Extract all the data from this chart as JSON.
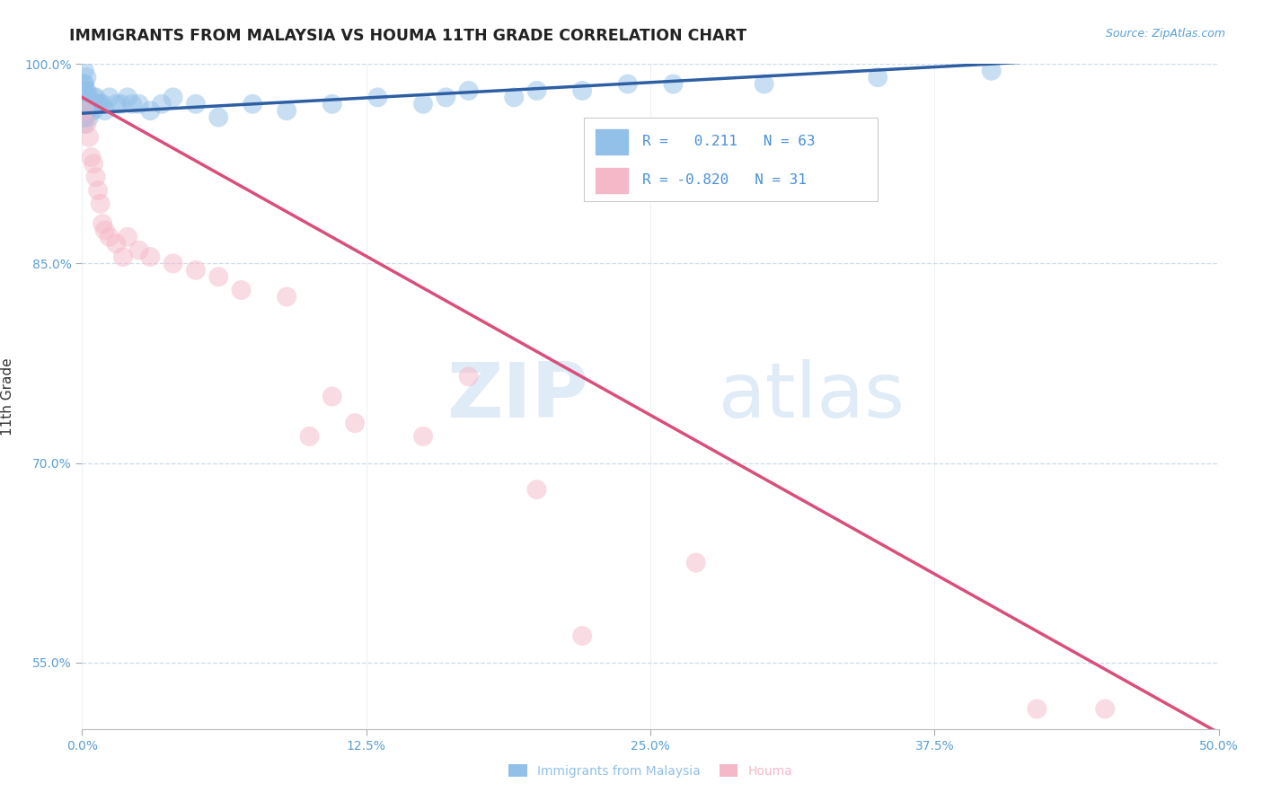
{
  "title": "IMMIGRANTS FROM MALAYSIA VS HOUMA 11TH GRADE CORRELATION CHART",
  "source_text": "Source: ZipAtlas.com",
  "ylabel": "11th Grade",
  "watermark_zip": "ZIP",
  "watermark_atlas": "atlas",
  "xlim": [
    0.0,
    0.5
  ],
  "ylim": [
    0.5,
    1.0
  ],
  "xtick_labels": [
    "0.0%",
    "",
    "",
    "",
    "12.5%",
    "",
    "",
    "",
    "25.0%",
    "",
    "",
    "",
    "37.5%",
    "",
    "",
    "",
    "50.0%"
  ],
  "xtick_vals": [
    0.0,
    0.03125,
    0.0625,
    0.09375,
    0.125,
    0.15625,
    0.1875,
    0.21875,
    0.25,
    0.28125,
    0.3125,
    0.34375,
    0.375,
    0.40625,
    0.4375,
    0.46875,
    0.5
  ],
  "xtick_major_labels": [
    "0.0%",
    "12.5%",
    "25.0%",
    "37.5%",
    "50.0%"
  ],
  "xtick_major_vals": [
    0.0,
    0.125,
    0.25,
    0.375,
    0.5
  ],
  "ytick_labels": [
    "100.0%",
    "85.0%",
    "70.0%",
    "55.0%"
  ],
  "ytick_vals": [
    1.0,
    0.85,
    0.7,
    0.55
  ],
  "blue_R": 0.211,
  "blue_N": 63,
  "pink_R": -0.82,
  "pink_N": 31,
  "blue_color": "#92C0E8",
  "pink_color": "#F5B8C8",
  "blue_line_color": "#2E5FA3",
  "pink_line_color": "#D94F7A",
  "legend_text_color": "#4A90D9",
  "background_color": "#FFFFFF",
  "grid_color": "#C8D8E8",
  "title_color": "#222222",
  "source_color": "#5A9FD4",
  "axis_label_color": "#333333",
  "tick_color": "#5A9FD4",
  "blue_scatter_x": [
    0.001,
    0.001,
    0.002,
    0.002,
    0.001,
    0.001,
    0.001,
    0.002,
    0.001,
    0.001,
    0.002,
    0.003,
    0.002,
    0.001,
    0.001,
    0.001,
    0.001,
    0.001,
    0.002,
    0.001,
    0.001,
    0.001,
    0.001,
    0.002,
    0.001,
    0.003,
    0.004,
    0.003,
    0.005,
    0.004,
    0.006,
    0.005,
    0.007,
    0.006,
    0.008,
    0.009,
    0.01,
    0.012,
    0.015,
    0.017,
    0.02,
    0.022,
    0.025,
    0.03,
    0.035,
    0.04,
    0.05,
    0.06,
    0.075,
    0.09,
    0.11,
    0.13,
    0.15,
    0.16,
    0.17,
    0.19,
    0.2,
    0.22,
    0.24,
    0.26,
    0.3,
    0.35,
    0.4
  ],
  "blue_scatter_y": [
    0.975,
    0.985,
    0.98,
    0.99,
    0.97,
    0.96,
    0.995,
    0.97,
    0.98,
    0.96,
    0.975,
    0.97,
    0.965,
    0.985,
    0.975,
    0.97,
    0.96,
    0.955,
    0.965,
    0.975,
    0.98,
    0.97,
    0.96,
    0.965,
    0.97,
    0.975,
    0.97,
    0.96,
    0.975,
    0.965,
    0.97,
    0.965,
    0.97,
    0.975,
    0.97,
    0.97,
    0.965,
    0.975,
    0.97,
    0.97,
    0.975,
    0.97,
    0.97,
    0.965,
    0.97,
    0.975,
    0.97,
    0.96,
    0.97,
    0.965,
    0.97,
    0.975,
    0.97,
    0.975,
    0.98,
    0.975,
    0.98,
    0.98,
    0.985,
    0.985,
    0.985,
    0.99,
    0.995
  ],
  "pink_scatter_x": [
    0.001,
    0.002,
    0.003,
    0.004,
    0.005,
    0.006,
    0.007,
    0.008,
    0.009,
    0.01,
    0.012,
    0.015,
    0.018,
    0.02,
    0.025,
    0.03,
    0.04,
    0.05,
    0.06,
    0.07,
    0.09,
    0.1,
    0.11,
    0.12,
    0.15,
    0.17,
    0.2,
    0.22,
    0.27,
    0.42,
    0.45
  ],
  "pink_scatter_y": [
    0.965,
    0.955,
    0.945,
    0.93,
    0.925,
    0.915,
    0.905,
    0.895,
    0.88,
    0.875,
    0.87,
    0.865,
    0.855,
    0.87,
    0.86,
    0.855,
    0.85,
    0.845,
    0.84,
    0.83,
    0.825,
    0.72,
    0.75,
    0.73,
    0.72,
    0.765,
    0.68,
    0.57,
    0.625,
    0.515,
    0.515
  ]
}
